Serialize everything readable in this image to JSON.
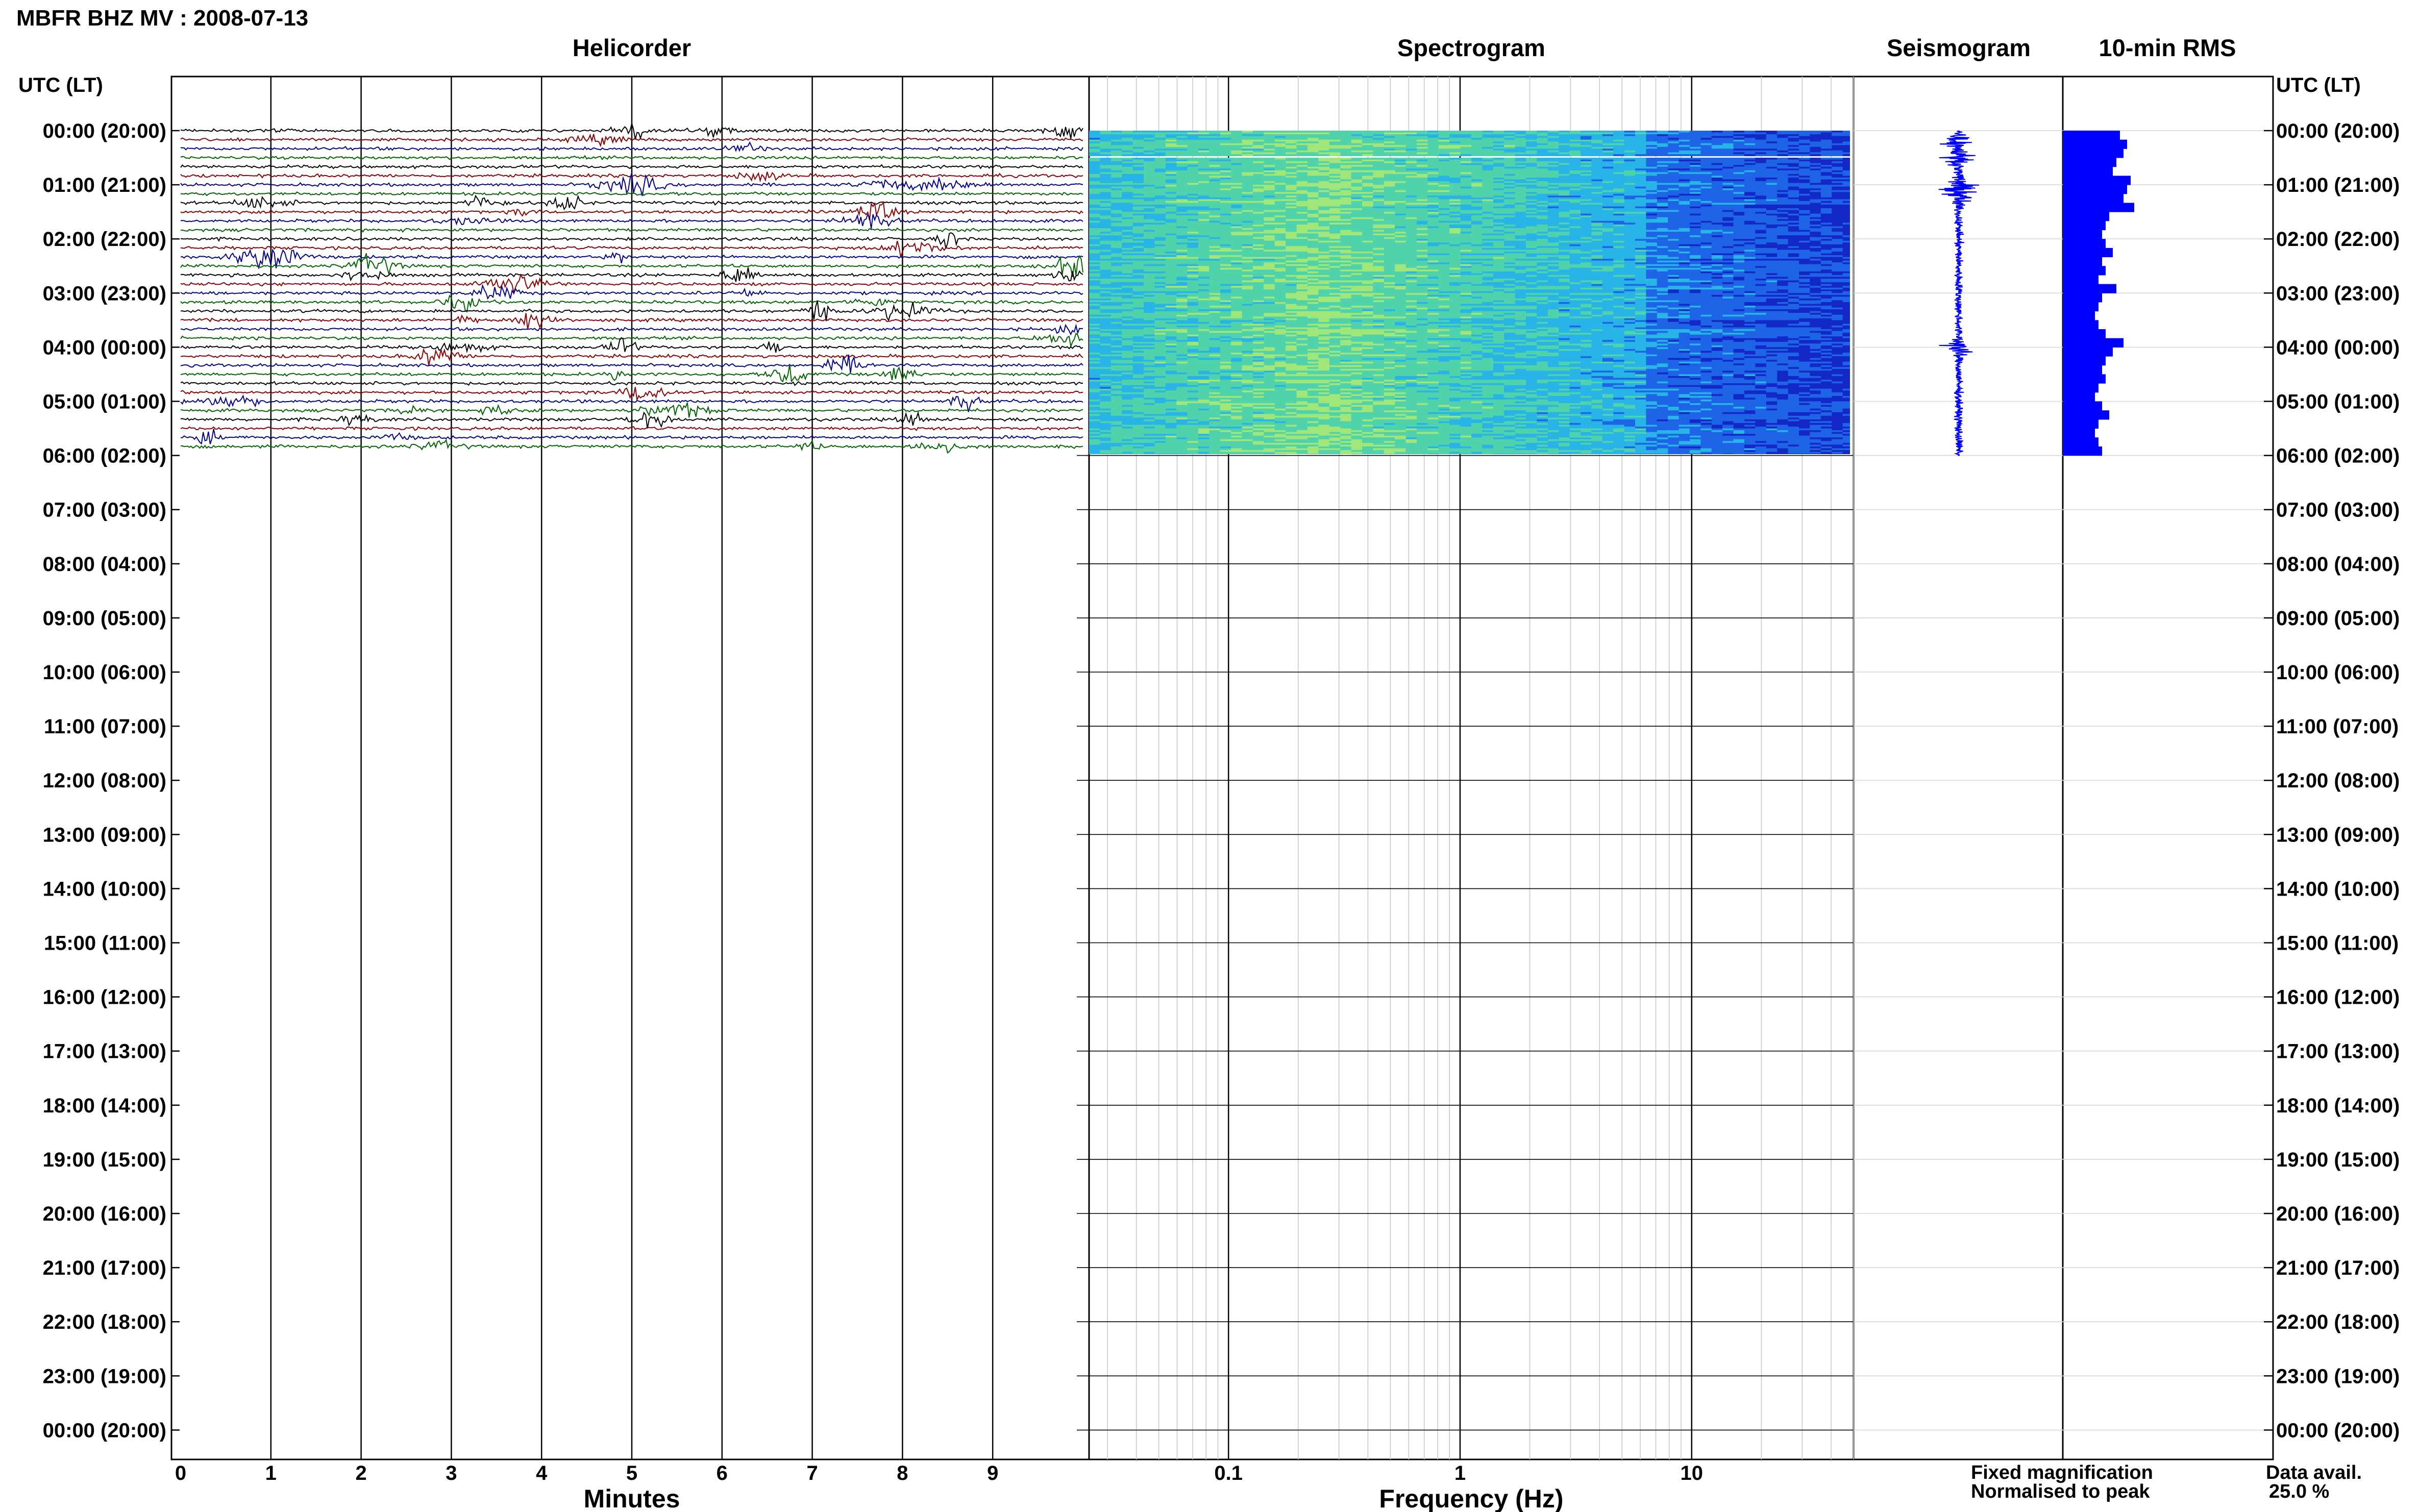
{
  "header": {
    "title": "MBFR BHZ MV : 2008-07-13",
    "tz_label_left": "UTC (LT)",
    "tz_label_right": "UTC (LT)"
  },
  "panels": {
    "helicorder": "Helicorder",
    "spectrogram": "Spectrogram",
    "seismogram": "Seismogram",
    "rms": "10-min RMS"
  },
  "footer": {
    "minutes_label": "Minutes",
    "frequency_label": "Frequency (Hz)",
    "legend_fixed": "Fixed magnification",
    "legend_normalised": "Normalised to peak",
    "data_avail_label": "Data avail.",
    "data_avail_value": "25.0 %"
  },
  "colors": {
    "trace_cycle": [
      "#000000",
      "#8b0000",
      "#00008b",
      "#006400"
    ],
    "legend_fixed": "#0000ff",
    "legend_normalised": "#ff0000",
    "seismogram": "#0000ff",
    "rms_bars": "#0000ff"
  },
  "chart_data": [
    {
      "type": "line",
      "name": "helicorder",
      "title": "Helicorder",
      "xlabel": "Minutes",
      "x_ticks": [
        "0",
        "1",
        "2",
        "3",
        "4",
        "5",
        "6",
        "7",
        "8",
        "9"
      ],
      "xlim": [
        0,
        10
      ],
      "row_minutes": 10,
      "rows_with_data": 36,
      "y_ticks": [
        "00:00 (20:00)",
        "01:00 (21:00)",
        "02:00 (22:00)",
        "03:00 (23:00)",
        "04:00 (00:00)",
        "05:00 (01:00)",
        "06:00 (02:00)",
        "07:00 (03:00)",
        "08:00 (04:00)",
        "09:00 (05:00)",
        "10:00 (06:00)",
        "11:00 (07:00)",
        "12:00 (08:00)",
        "13:00 (09:00)",
        "14:00 (10:00)",
        "15:00 (11:00)",
        "16:00 (12:00)",
        "17:00 (13:00)",
        "18:00 (14:00)",
        "19:00 (15:00)",
        "20:00 (16:00)",
        "21:00 (17:00)",
        "22:00 (18:00)",
        "23:00 (19:00)",
        "00:00 (20:00)"
      ],
      "y_ticks_right": [
        "00:00 (20:00)",
        "01:00 (21:00)",
        "02:00 (22:00)",
        "03:00 (23:00)",
        "04:00 (00:00)",
        "05:00 (01:00)",
        "06:00 (02:00)",
        "07:00 (03:00)",
        "08:00 (04:00)",
        "09:00 (05:00)",
        "10:00 (06:00)",
        "11:00 (07:00)",
        "12:00 (08:00)",
        "13:00 (09:00)",
        "14:00 (10:00)",
        "15:00 (11:00)",
        "16:00 (12:00)",
        "17:00 (13:00)",
        "18:00 (14:00)",
        "19:00 (15:00)",
        "20:00 (16:00)",
        "21:00 (17:00)",
        "22:00 (18:00)",
        "23:00 (19:00)",
        "00:00 (20:00)"
      ]
    },
    {
      "type": "heatmap",
      "name": "spectrogram",
      "title": "Spectrogram",
      "xlabel": "Frequency (Hz)",
      "x_scale": "log",
      "xlim": [
        0.025,
        50
      ],
      "x_ticks": [
        "0.1",
        "1",
        "10"
      ],
      "x_tick_values": [
        0.1,
        1,
        10
      ],
      "hours_with_data": 6,
      "peak_energy_hz": 0.25,
      "colormap": [
        "#1428c8",
        "#1e64e6",
        "#28b4e6",
        "#50d2aa",
        "#a0e678",
        "#e6f05a"
      ]
    },
    {
      "type": "line",
      "name": "seismogram",
      "title": "Seismogram",
      "hours_with_data": 6,
      "peak_hours": [
        0.2,
        0.5,
        1.0,
        1.2,
        4.0
      ]
    },
    {
      "type": "bar",
      "name": "rms",
      "title": "10-min RMS",
      "orientation": "horizontal",
      "categories": [
        "00:00",
        "00:10",
        "00:20",
        "00:30",
        "00:40",
        "00:50",
        "01:00",
        "01:10",
        "01:20",
        "01:30",
        "01:40",
        "01:50",
        "02:00",
        "02:10",
        "02:20",
        "02:30",
        "02:40",
        "02:50",
        "03:00",
        "03:10",
        "03:20",
        "03:30",
        "03:40",
        "03:50",
        "04:00",
        "04:10",
        "04:20",
        "04:30",
        "04:40",
        "04:50",
        "05:00",
        "05:10",
        "05:20",
        "05:30",
        "05:40",
        "05:50"
      ],
      "values": [
        0.8,
        0.9,
        0.85,
        0.75,
        0.7,
        0.95,
        0.9,
        0.85,
        1.0,
        0.65,
        0.6,
        0.55,
        0.6,
        0.7,
        0.55,
        0.6,
        0.5,
        0.75,
        0.55,
        0.5,
        0.45,
        0.5,
        0.6,
        0.85,
        0.7,
        0.6,
        0.55,
        0.6,
        0.5,
        0.45,
        0.55,
        0.65,
        0.5,
        0.45,
        0.5,
        0.55
      ],
      "xlim": [
        0,
        1
      ]
    }
  ]
}
